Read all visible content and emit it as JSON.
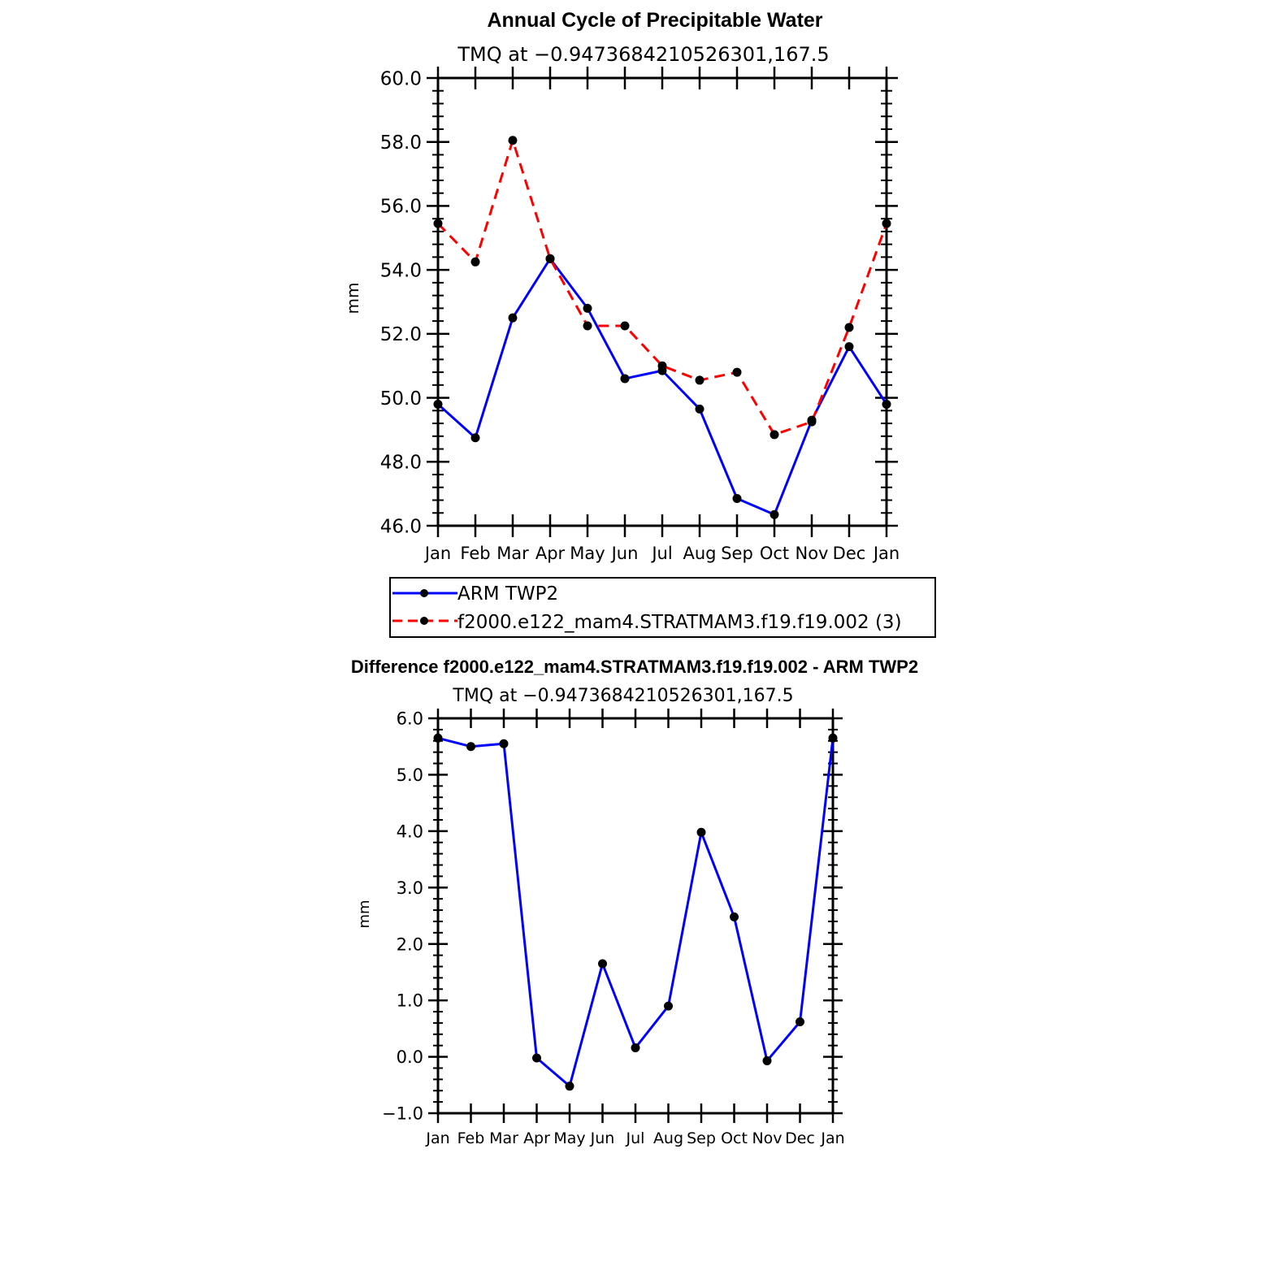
{
  "chart_data": [
    {
      "type": "line",
      "title": "Annual Cycle of Precipitable Water",
      "subtitle": "TMQ at −0.9473684210526301,167.5",
      "ylabel": "mm",
      "xlabel": "",
      "categories": [
        "Jan",
        "Feb",
        "Mar",
        "Apr",
        "May",
        "Jun",
        "Jul",
        "Aug",
        "Sep",
        "Oct",
        "Nov",
        "Dec",
        "Jan"
      ],
      "ylim": [
        46,
        60
      ],
      "yticks": [
        46,
        48,
        50,
        52,
        54,
        56,
        58,
        60
      ],
      "ytick_labels": [
        "46.0",
        "48.0",
        "50.0",
        "52.0",
        "54.0",
        "56.0",
        "58.0",
        "60.0"
      ],
      "series": [
        {
          "name": "ARM TWP2",
          "color": "#0000ff",
          "dash": "solid",
          "values": [
            49.8,
            48.75,
            52.5,
            54.35,
            52.8,
            50.6,
            50.85,
            49.65,
            46.85,
            46.35,
            49.3,
            51.6,
            49.8
          ]
        },
        {
          "name": "f2000.e122_mam4.STRATMAM3.f19.f19.002 (3)",
          "color": "#ff0000",
          "dash": "dashed",
          "values": [
            55.45,
            54.25,
            58.05,
            54.35,
            52.25,
            52.25,
            51.0,
            50.55,
            50.8,
            48.85,
            49.25,
            52.2,
            55.45
          ]
        }
      ],
      "legend": [
        "ARM TWP2",
        "f2000.e122_mam4.STRATMAM3.f19.f19.002 (3)"
      ]
    },
    {
      "type": "line",
      "title": "Difference f2000.e122_mam4.STRATMAM3.f19.f19.002 - ARM TWP2",
      "subtitle": "TMQ at −0.9473684210526301,167.5",
      "ylabel": "mm",
      "xlabel": "",
      "categories": [
        "Jan",
        "Feb",
        "Mar",
        "Apr",
        "May",
        "Jun",
        "Jul",
        "Aug",
        "Sep",
        "Oct",
        "Nov",
        "Dec",
        "Jan"
      ],
      "ylim": [
        -1,
        6
      ],
      "yticks": [
        -1,
        0,
        1,
        2,
        3,
        4,
        5,
        6
      ],
      "ytick_labels": [
        "−1.0",
        "0.0",
        "1.0",
        "2.0",
        "3.0",
        "4.0",
        "5.0",
        "6.0"
      ],
      "series": [
        {
          "name": "Difference",
          "color": "#0000ff",
          "dash": "solid",
          "values": [
            5.65,
            5.5,
            5.55,
            -0.02,
            -0.52,
            1.65,
            0.16,
            0.9,
            3.98,
            2.48,
            -0.07,
            0.62,
            5.65
          ]
        }
      ]
    }
  ]
}
